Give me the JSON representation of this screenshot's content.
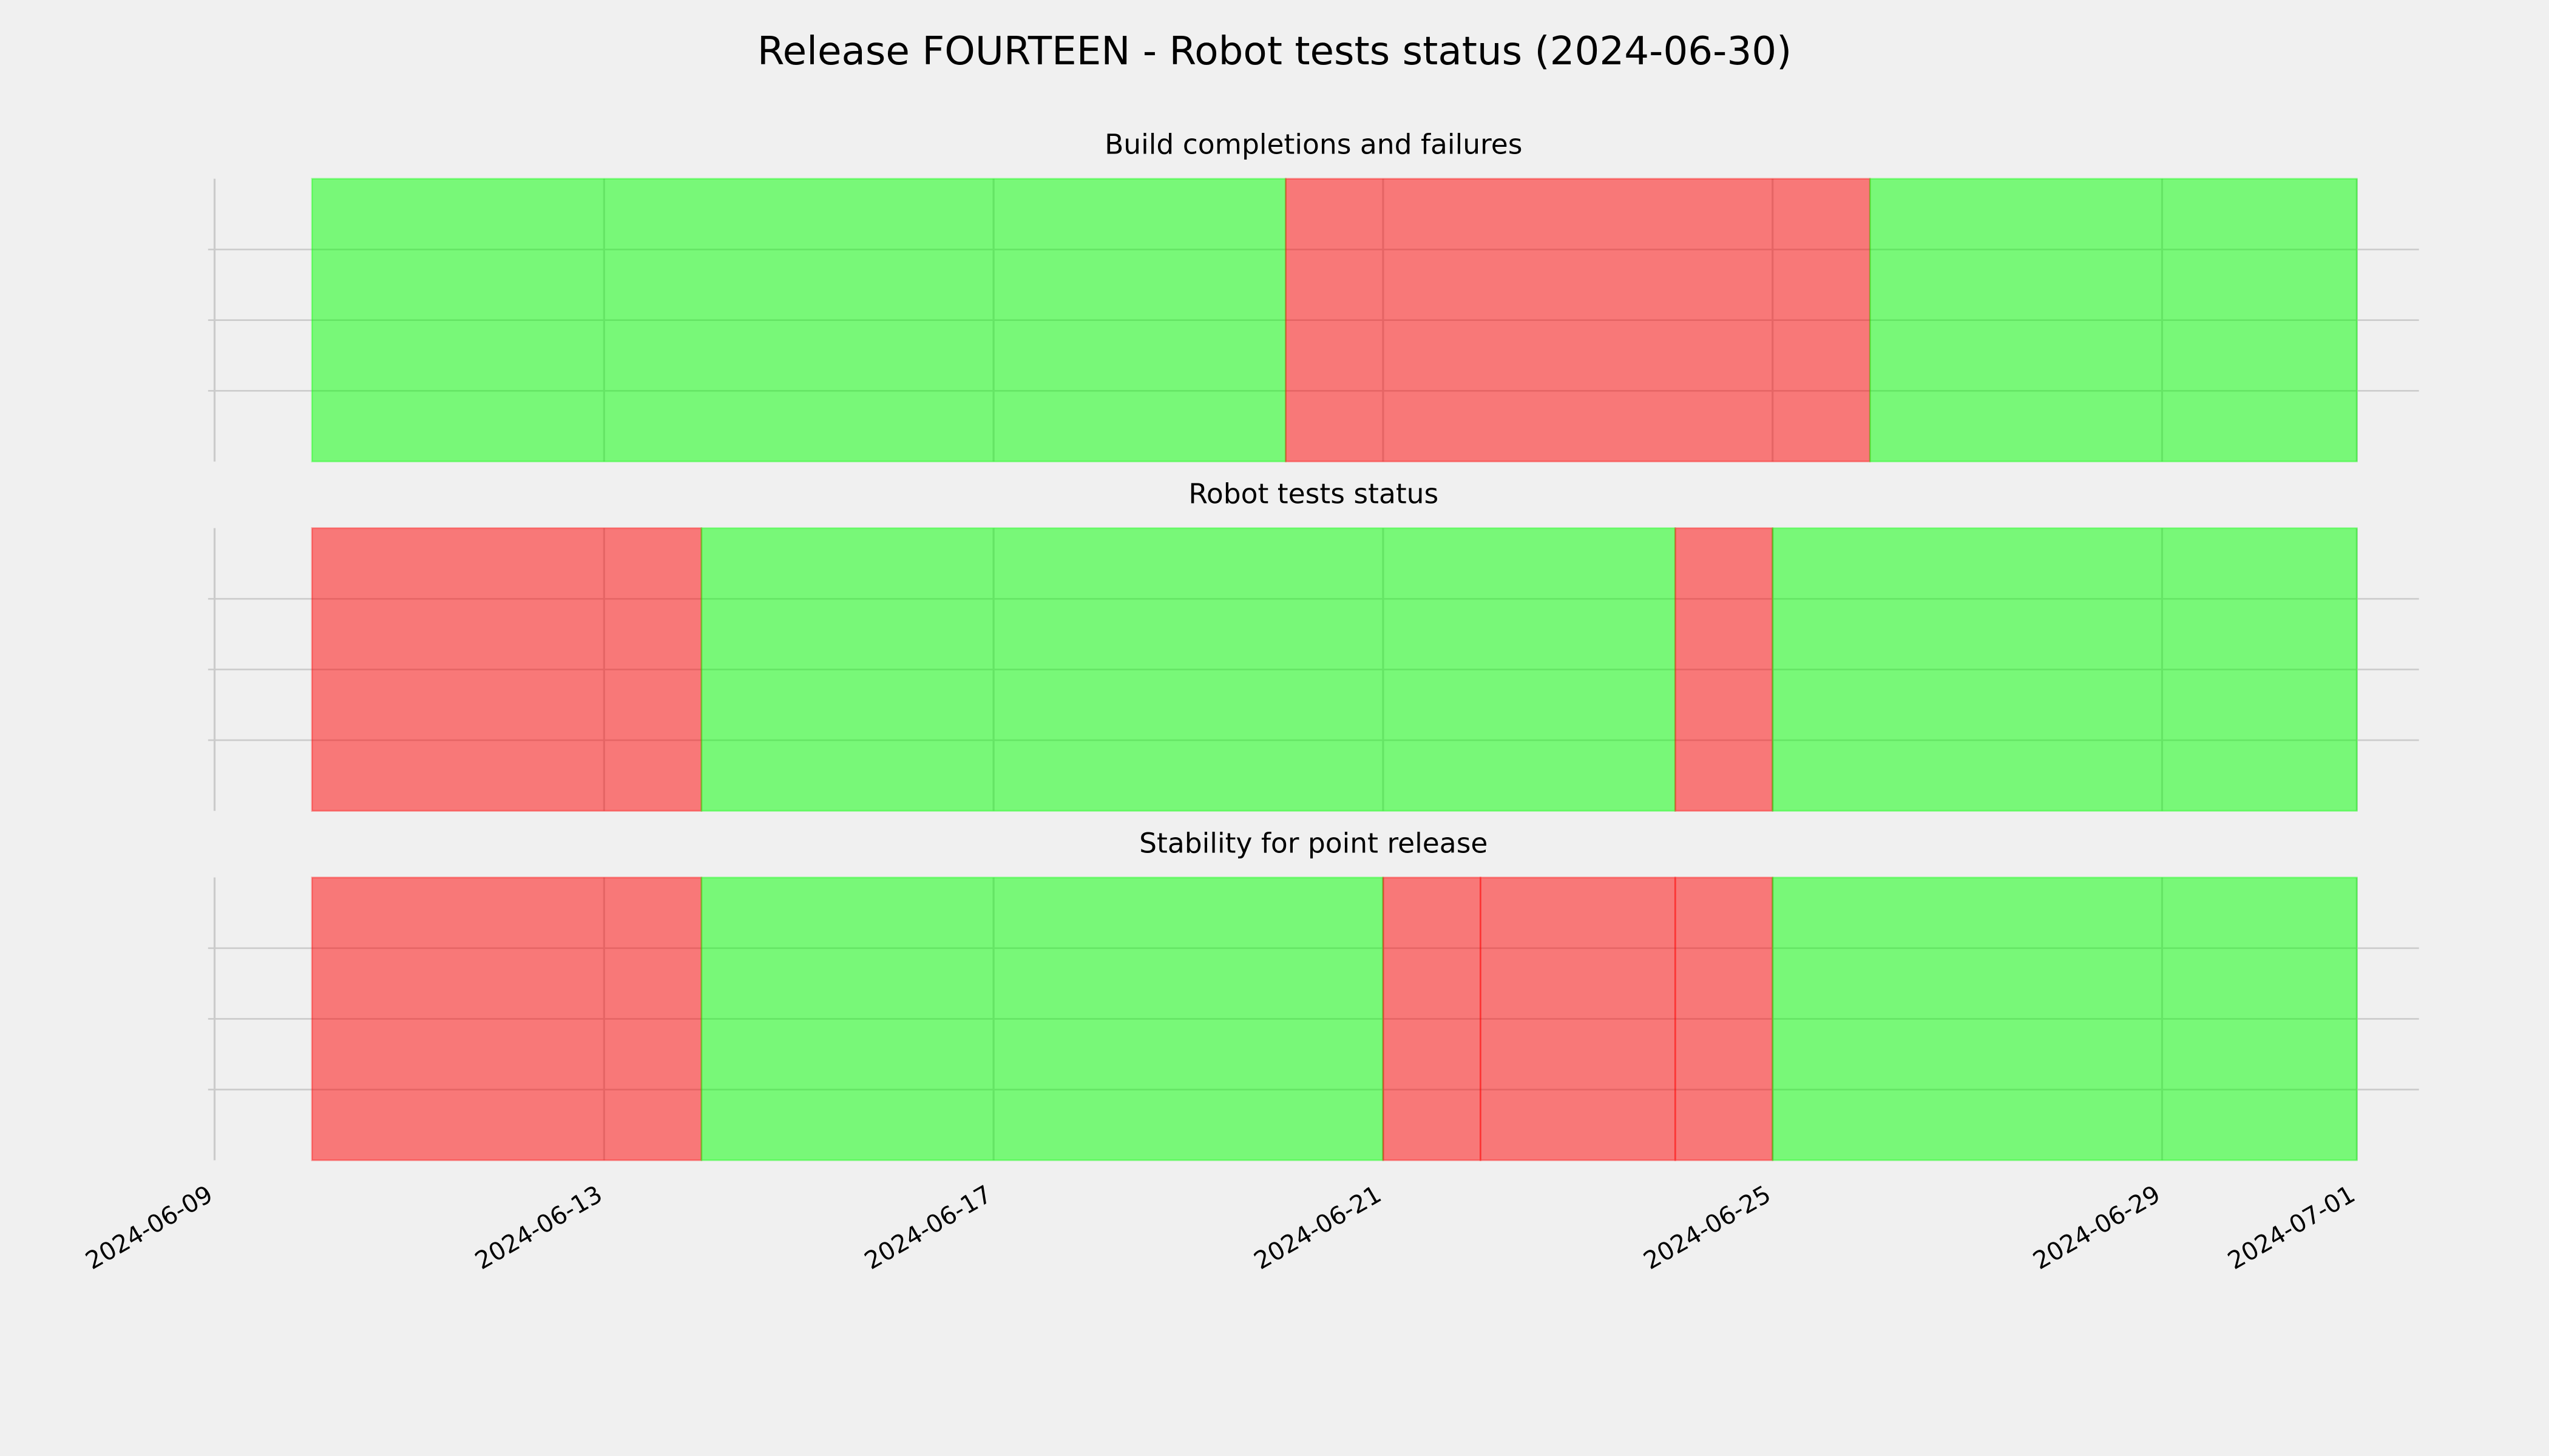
{
  "chart_data": {
    "type": "timeline",
    "title": "Release FOURTEEN - Robot tests status (2024-06-30)",
    "xlim": [
      "2024-06-09",
      "2024-07-02"
    ],
    "xticks": [
      "2024-06-09",
      "2024-06-13",
      "2024-06-17",
      "2024-06-21",
      "2024-06-25",
      "2024-06-29",
      "2024-07-01"
    ],
    "grid": true,
    "panels": [
      {
        "title": "Build completions and failures",
        "segments": [
          {
            "start": "2024-06-10",
            "end": "2024-06-20",
            "color": "#00ff00"
          },
          {
            "start": "2024-06-20",
            "end": "2024-06-26",
            "color": "#ff0000"
          },
          {
            "start": "2024-06-26",
            "end": "2024-07-01",
            "color": "#00ff00"
          }
        ]
      },
      {
        "title": "Robot tests status",
        "segments": [
          {
            "start": "2024-06-10",
            "end": "2024-06-14",
            "color": "#ff0000"
          },
          {
            "start": "2024-06-14",
            "end": "2024-06-24",
            "color": "#00ff00"
          },
          {
            "start": "2024-06-24",
            "end": "2024-06-25",
            "color": "#ff0000"
          },
          {
            "start": "2024-06-25",
            "end": "2024-07-01",
            "color": "#00ff00"
          }
        ]
      },
      {
        "title": "Stability for point release",
        "segments": [
          {
            "start": "2024-06-10",
            "end": "2024-06-14",
            "color": "#ff0000"
          },
          {
            "start": "2024-06-14",
            "end": "2024-06-21",
            "color": "#00ff00"
          },
          {
            "start": "2024-06-21",
            "end": "2024-06-22",
            "color": "#ff0000"
          },
          {
            "start": "2024-06-22",
            "end": "2024-06-24",
            "color": "#ff0000"
          },
          {
            "start": "2024-06-24",
            "end": "2024-06-25",
            "color": "#ff0000"
          },
          {
            "start": "2024-06-25",
            "end": "2024-07-01",
            "color": "#00ff00"
          }
        ]
      }
    ]
  }
}
